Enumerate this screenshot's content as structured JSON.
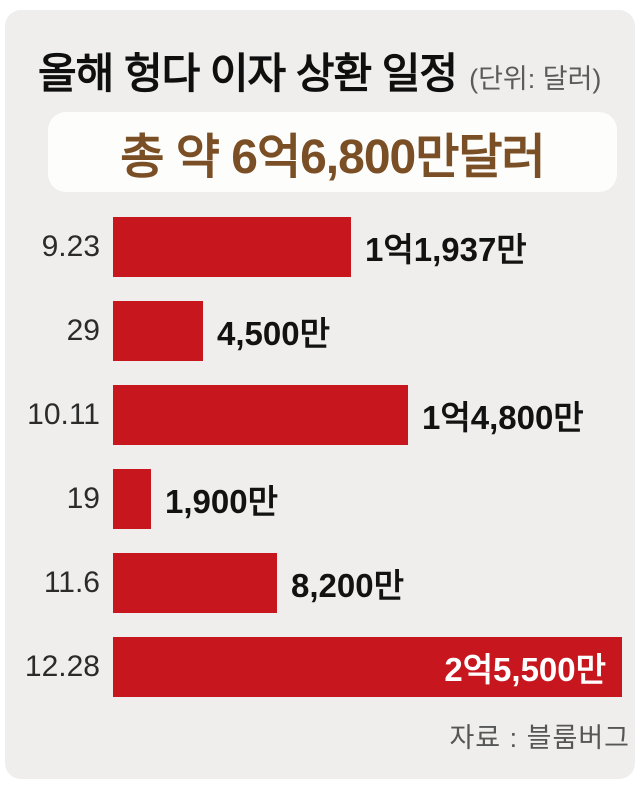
{
  "page": {
    "background": "#ffffff",
    "panel_background": "#efeeec"
  },
  "header": {
    "title": "올해 헝다 이자 상환 일정",
    "unit_note": "(단위: 달러)"
  },
  "total_box": {
    "label": "총 약 6억6,800만달러",
    "text_color": "#7a4f26",
    "background": "#fdfdfb"
  },
  "chart_data": {
    "type": "bar",
    "orientation": "horizontal",
    "title": "올해 헝다 이자 상환 일정",
    "unit": "달러",
    "categories": [
      "9.23",
      "29",
      "10.11",
      "19",
      "11.6",
      "12.28"
    ],
    "values": [
      119370000,
      45000000,
      148000000,
      19000000,
      82000000,
      255000000
    ],
    "value_labels": [
      "1억1,937만",
      "4,500만",
      "1억4,800만",
      "1,900만",
      "8,200만",
      "2억5,500만"
    ],
    "label_inside_bar": [
      false,
      false,
      false,
      false,
      false,
      true
    ],
    "max_value": 255000000,
    "bar_color": "#c8161e",
    "grid": false,
    "legend": "none"
  },
  "footer": {
    "source": "자료 : 블룸버그"
  }
}
